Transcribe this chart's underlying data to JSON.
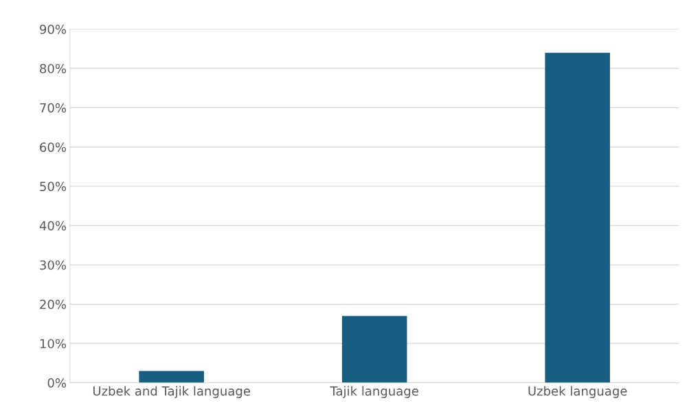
{
  "chart_data": {
    "type": "bar",
    "categories": [
      "Uzbek and Tajik language",
      "Tajik language",
      "Uzbek language"
    ],
    "values": [
      3,
      17,
      84
    ],
    "color": "#175e80",
    "ylim": [
      0,
      90
    ],
    "yticks": [
      {
        "value": 0,
        "label": "0%"
      },
      {
        "value": 10,
        "label": "10%"
      },
      {
        "value": 20,
        "label": "20%"
      },
      {
        "value": 30,
        "label": "30%"
      },
      {
        "value": 40,
        "label": "40%"
      },
      {
        "value": 50,
        "label": "50%"
      },
      {
        "value": 60,
        "label": "60%"
      },
      {
        "value": 70,
        "label": "70%"
      },
      {
        "value": 80,
        "label": "80%"
      },
      {
        "value": 90,
        "label": "90%"
      }
    ],
    "grid": "y"
  }
}
